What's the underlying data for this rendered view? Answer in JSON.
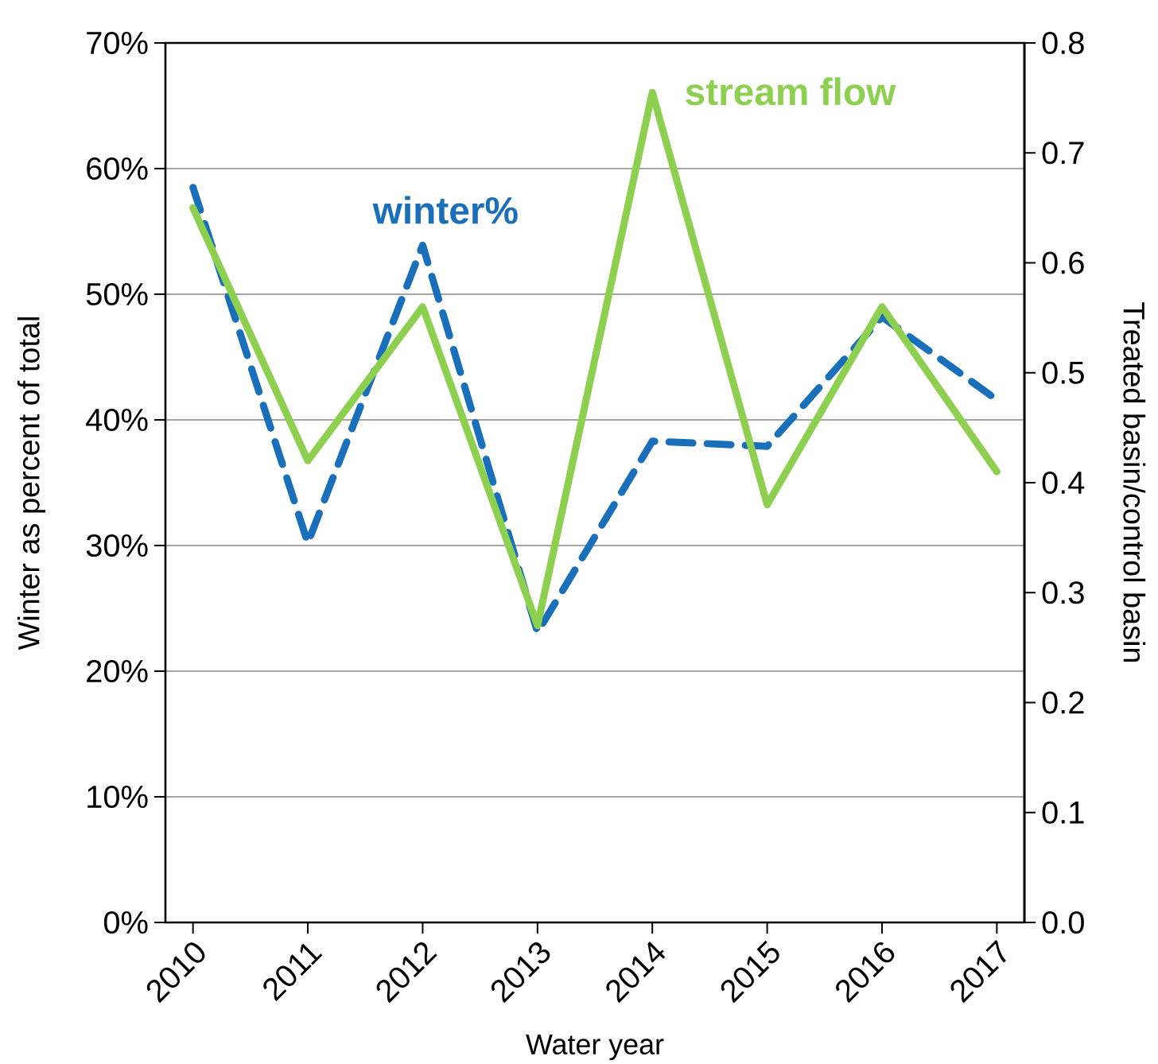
{
  "chart_data": {
    "type": "line",
    "xlabel": "Water year",
    "ylabel": "Winter as percent of total",
    "y2label": "Treated basin/control basin",
    "categories": [
      "2010",
      "2011",
      "2012",
      "2013",
      "2014",
      "2015",
      "2016",
      "2017"
    ],
    "series": [
      {
        "name": "winter%",
        "color": "#1a6fba",
        "line_style": "dashed",
        "values": [
          58.5,
          30.2,
          53.9,
          23.1,
          38.3,
          37.9,
          48.2,
          41.6
        ]
      },
      {
        "name": "stream flow",
        "color": "#8dcf4e",
        "line_style": "solid",
        "axis": "y2",
        "values": [
          0.65,
          0.42,
          0.56,
          0.27,
          0.755,
          0.38,
          0.56,
          0.41
        ]
      }
    ],
    "ylim": [
      0,
      70
    ],
    "yticks": [
      {
        "value": 0,
        "label": "0%"
      },
      {
        "value": 10,
        "label": "10%"
      },
      {
        "value": 20,
        "label": "20%"
      },
      {
        "value": 30,
        "label": "30%"
      },
      {
        "value": 40,
        "label": "40%"
      },
      {
        "value": 50,
        "label": "50%"
      },
      {
        "value": 60,
        "label": "60%"
      },
      {
        "value": 70,
        "label": "70%"
      }
    ],
    "y2lim": [
      0,
      0.8
    ],
    "y2ticks": [
      {
        "value": 0,
        "label": "0.0"
      },
      0.1,
      0.2,
      0.3,
      0.4,
      0.5,
      0.6,
      0.7,
      0.8
    ],
    "grid": "y"
  }
}
